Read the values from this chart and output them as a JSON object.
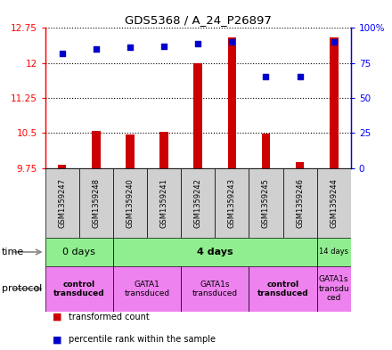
{
  "title": "GDS5368 / A_24_P26897",
  "samples": [
    "GSM1359247",
    "GSM1359248",
    "GSM1359240",
    "GSM1359241",
    "GSM1359242",
    "GSM1359243",
    "GSM1359245",
    "GSM1359246",
    "GSM1359244"
  ],
  "transformed_counts": [
    9.82,
    10.55,
    10.47,
    10.52,
    12.0,
    12.55,
    10.48,
    9.88,
    12.55
  ],
  "percentile_ranks": [
    82,
    85,
    86,
    87,
    89,
    90,
    65,
    65,
    90
  ],
  "ylim_left": [
    9.75,
    12.75
  ],
  "yticks_left": [
    9.75,
    10.5,
    11.25,
    12.0,
    12.75
  ],
  "ytick_labels_left": [
    "9.75",
    "10.5",
    "11.25",
    "12",
    "12.75"
  ],
  "ylim_right": [
    0,
    100
  ],
  "yticks_right": [
    0,
    25,
    50,
    75,
    100
  ],
  "ytick_labels_right": [
    "0",
    "25",
    "50",
    "75",
    "100%"
  ],
  "bar_color": "#cc0000",
  "dot_color": "#0000cc",
  "base_value": 9.75,
  "time_groups": [
    {
      "label": "0 days",
      "start": 0,
      "end": 2,
      "bold": false
    },
    {
      "label": "4 days",
      "start": 2,
      "end": 8,
      "bold": true
    },
    {
      "label": "14 days",
      "start": 8,
      "end": 9,
      "bold": false
    }
  ],
  "protocol_groups": [
    {
      "label": "control\ntransduced",
      "start": 0,
      "end": 2,
      "bold": true
    },
    {
      "label": "GATA1\ntransduced",
      "start": 2,
      "end": 4,
      "bold": false
    },
    {
      "label": "GATA1s\ntransduced",
      "start": 4,
      "end": 6,
      "bold": false
    },
    {
      "label": "control\ntransduced",
      "start": 6,
      "end": 8,
      "bold": true
    },
    {
      "label": "GATA1s\ntransdu\nced",
      "start": 8,
      "end": 9,
      "bold": false
    }
  ]
}
